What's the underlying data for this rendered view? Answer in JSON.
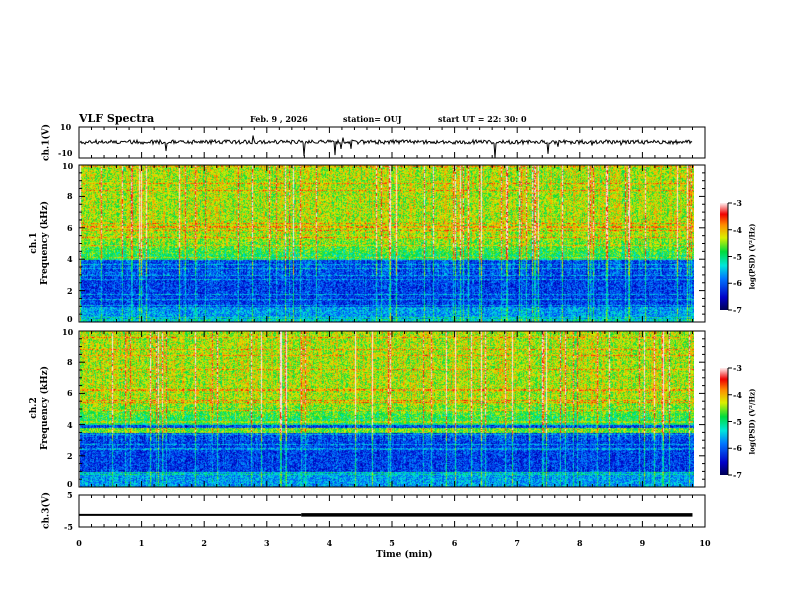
{
  "header": {
    "title": "VLF Spectra",
    "date": "Feb. 9 , 2026",
    "station": "station= OUJ",
    "start": "start  UT =  22: 30: 0"
  },
  "panels": {
    "ch1_wave": {
      "ylabel": "ch.1(V)",
      "yticks": [
        "10",
        "-10"
      ]
    },
    "ch1_spec": {
      "ylabel1": "ch.1",
      "ylabel2": "Frequency (kHz)",
      "yticks": [
        "10",
        "8",
        "6",
        "4",
        "2",
        "0"
      ]
    },
    "ch2_spec": {
      "ylabel1": "ch.2",
      "ylabel2": "Frequency (kHz)",
      "yticks": [
        "10",
        "8",
        "6",
        "4",
        "2",
        "0"
      ]
    },
    "ch3_wave": {
      "ylabel": "ch.3(V)",
      "yticks": [
        "5",
        "-5"
      ]
    }
  },
  "colorbar": {
    "label": "log(PSD) (V²/Hz)",
    "ticks": [
      "-3",
      "-4",
      "-5",
      "-6",
      "-7"
    ]
  },
  "chart_data": {
    "type": "heatmap",
    "title": "VLF Spectra",
    "xlabel": "Time (min)",
    "xlim": [
      0,
      10
    ],
    "xticks": [
      "0",
      "1",
      "2",
      "3",
      "4",
      "5",
      "6",
      "7",
      "8",
      "9",
      "10"
    ],
    "data_end_min": 9.8,
    "ylabel": "Frequency (kHz)",
    "ylim": [
      0,
      10
    ],
    "color_range": [
      -7,
      -3
    ],
    "ch3_levels": [
      {
        "from": 0,
        "to": 3.55,
        "value": -1.2
      },
      {
        "from": 3.55,
        "to": 9.8,
        "value": -1.2
      }
    ]
  }
}
